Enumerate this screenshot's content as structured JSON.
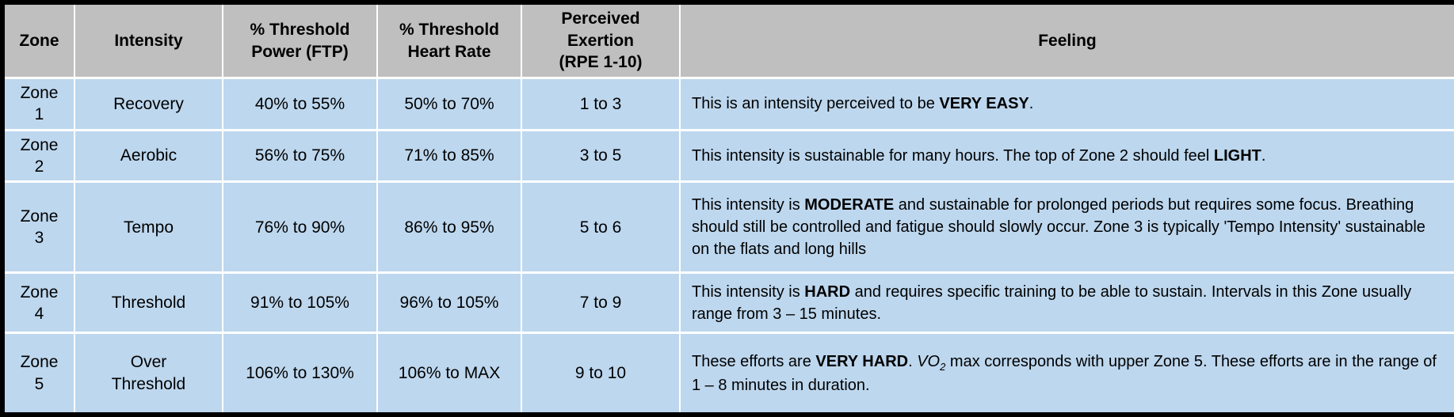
{
  "colors": {
    "header_bg": "#bfbfbf",
    "row_bg": "#bdd7ee",
    "grid_line": "#ffffff",
    "outer_border": "#000000",
    "text": "#000000"
  },
  "table": {
    "headers": [
      "Zone",
      "Intensity",
      "% Threshold Power (FTP)",
      "% Threshold Heart Rate",
      "Perceived Exertion (RPE 1-10)",
      "Feeling"
    ],
    "rows": [
      {
        "zone": "Zone 1",
        "intensity": "Recovery",
        "threshold_power": "40% to 55%",
        "threshold_heart_rate": "50% to 70%",
        "perceived_exertion": "1 to 3",
        "feeling": [
          {
            "text": "This is an intensity perceived to be "
          },
          {
            "text": "VERY EASY",
            "bold": true
          },
          {
            "text": "."
          }
        ]
      },
      {
        "zone": "Zone 2",
        "intensity": "Aerobic",
        "threshold_power": "56% to 75%",
        "threshold_heart_rate": "71% to 85%",
        "perceived_exertion": "3 to 5",
        "feeling": [
          {
            "text": "This intensity is sustainable for many hours. The top of Zone 2 should feel "
          },
          {
            "text": "LIGHT",
            "bold": true
          },
          {
            "text": "."
          }
        ]
      },
      {
        "zone": "Zone 3",
        "intensity": "Tempo",
        "threshold_power": "76% to 90%",
        "threshold_heart_rate": "86% to 95%",
        "perceived_exertion": "5 to 6",
        "feeling": [
          {
            "text": "This intensity is "
          },
          {
            "text": "MODERATE",
            "bold": true
          },
          {
            "text": " and sustainable for prolonged periods but requires some focus. Breathing should still be controlled and fatigue should slowly occur. Zone 3 is typically 'Tempo Intensity' sustainable on the flats and long hills"
          }
        ]
      },
      {
        "zone": "Zone 4",
        "intensity": "Threshold",
        "threshold_power": "91% to 105%",
        "threshold_heart_rate": "96% to 105%",
        "perceived_exertion": "7 to 9",
        "feeling": [
          {
            "text": "This intensity is "
          },
          {
            "text": "HARD",
            "bold": true
          },
          {
            "text": " and requires specific training to be able to sustain. Intervals in this Zone usually range from 3 – 15 minutes."
          }
        ]
      },
      {
        "zone": "Zone 5",
        "intensity": "Over Threshold",
        "threshold_power": "106% to 130%",
        "threshold_heart_rate": "106% to MAX",
        "perceived_exertion": "9 to 10",
        "feeling": [
          {
            "text": "These efforts are "
          },
          {
            "text": "VERY HARD",
            "bold": true
          },
          {
            "text": ". "
          },
          {
            "text": "VO",
            "italic": true
          },
          {
            "text": "2",
            "sub": true,
            "italic": true
          },
          {
            "text": " max corresponds with upper Zone 5. These efforts are in the range of 1 – 8 minutes in duration."
          }
        ]
      }
    ]
  }
}
